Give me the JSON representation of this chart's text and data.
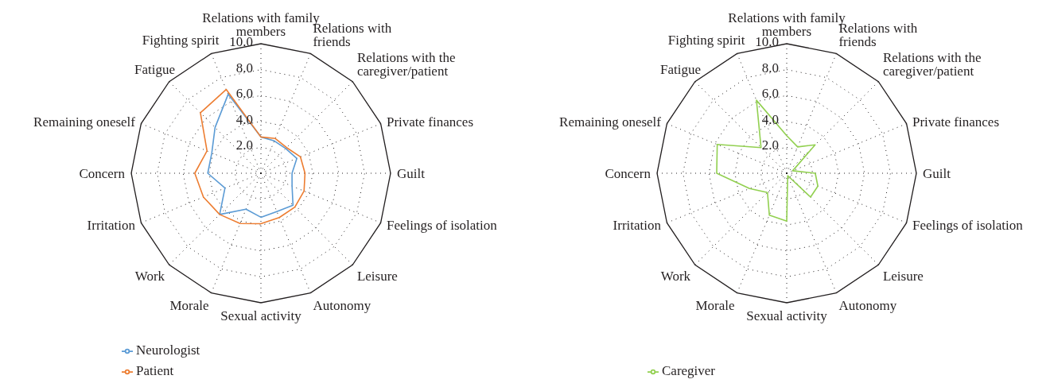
{
  "chart_data": [
    {
      "type": "radar",
      "categories": [
        "Relations with family members",
        "Relations with friends",
        "Relations with the caregiver/patient",
        "Private finances",
        "Guilt",
        "Feelings of isolation",
        "Leisure",
        "Autonomy",
        "Sexual activity",
        "Morale",
        "Work",
        "Irritation",
        "Concern",
        "Remaining oneself",
        "Fatigue",
        "Fighting spirit"
      ],
      "series": [
        {
          "name": "Neurologist",
          "color": "#5b9bd5",
          "values": [
            2.8,
            2.7,
            2.7,
            3.0,
            2.4,
            2.6,
            3.5,
            3.2,
            3.4,
            3.0,
            4.5,
            3.0,
            4.1,
            4.1,
            5.0,
            6.6
          ]
        },
        {
          "name": "Patient",
          "color": "#ed7d31",
          "values": [
            2.8,
            2.9,
            2.8,
            3.3,
            3.4,
            3.6,
            3.7,
            3.7,
            3.9,
            4.2,
            4.5,
            4.8,
            5.1,
            4.5,
            6.6,
            7.0
          ]
        }
      ],
      "ylim": [
        0,
        10
      ],
      "yticks": [
        {
          "value": 2,
          "label": "2.0"
        },
        {
          "value": 4,
          "label": "4.0"
        },
        {
          "value": 6,
          "label": "6.0"
        },
        {
          "value": 8,
          "label": "8.0"
        },
        {
          "value": 10,
          "label": "10.0"
        }
      ],
      "grid": true,
      "legend": "bottom left",
      "marker": "none"
    },
    {
      "type": "radar",
      "categories": [
        "Relations with family members",
        "Relations with friends",
        "Relations with the caregiver/patient",
        "Private finances",
        "Guilt",
        "Feelings of isolation",
        "Leisure",
        "Autonomy",
        "Sexual activity",
        "Morale",
        "Work",
        "Irritation",
        "Concern",
        "Remaining oneself",
        "Fatigue",
        "Fighting spirit"
      ],
      "series": [
        {
          "name": "Caregiver",
          "color": "#92d050",
          "values": [
            2.9,
            2.2,
            3.1,
            0.5,
            2.2,
            2.6,
            2.6,
            0.2,
            3.7,
            3.5,
            2.1,
            3.1,
            5.4,
            5.8,
            2.8,
            6.1
          ]
        }
      ],
      "ylim": [
        0,
        10
      ],
      "yticks": [
        {
          "value": 2,
          "label": "2.0"
        },
        {
          "value": 4,
          "label": "4.0"
        },
        {
          "value": 6,
          "label": "6.0"
        },
        {
          "value": 8,
          "label": "8.0"
        },
        {
          "value": 10,
          "label": "10.0"
        }
      ],
      "grid": true,
      "legend": "bottom left",
      "marker": "none"
    }
  ]
}
